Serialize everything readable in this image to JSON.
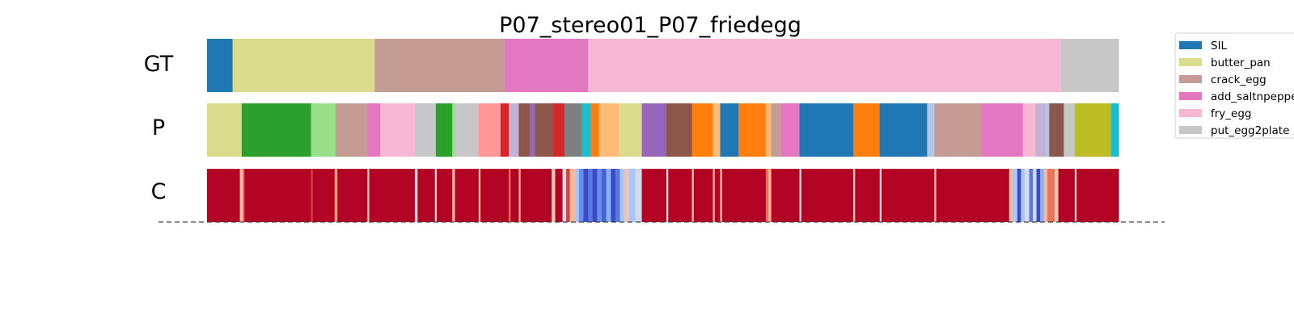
{
  "chart_data": {
    "type": "segmentation",
    "title": "P07_stereo01_P07_friedegg",
    "rows": [
      "GT",
      "P",
      "C"
    ],
    "legend": {
      "placement": "top-right",
      "entries": [
        {
          "label": "SIL",
          "color": "#1f77b4"
        },
        {
          "label": "butter_pan",
          "color": "#dbdb8d"
        },
        {
          "label": "crack_egg",
          "color": "#c49c94"
        },
        {
          "label": "add_saltnpepper",
          "color": "#e377c2"
        },
        {
          "label": "fry_egg",
          "color": "#f7b6d2"
        },
        {
          "label": "put_egg2plate",
          "color": "#c7c7c7"
        }
      ]
    },
    "gt_segments": [
      {
        "start": 0.0,
        "end": 0.028,
        "color": "#1f77b4"
      },
      {
        "start": 0.028,
        "end": 0.184,
        "color": "#dbdb8d"
      },
      {
        "start": 0.184,
        "end": 0.327,
        "color": "#c49c94"
      },
      {
        "start": 0.327,
        "end": 0.418,
        "color": "#e377c2"
      },
      {
        "start": 0.418,
        "end": 0.937,
        "color": "#f7b6d2"
      },
      {
        "start": 0.937,
        "end": 1.0,
        "color": "#c7c7c7"
      }
    ],
    "pred_segments": [
      {
        "start": 0.0,
        "end": 0.038,
        "color": "#dbdb8d"
      },
      {
        "start": 0.038,
        "end": 0.114,
        "color": "#2ca02c"
      },
      {
        "start": 0.114,
        "end": 0.141,
        "color": "#98df8a"
      },
      {
        "start": 0.141,
        "end": 0.176,
        "color": "#c49c94"
      },
      {
        "start": 0.176,
        "end": 0.19,
        "color": "#e377c2"
      },
      {
        "start": 0.19,
        "end": 0.228,
        "color": "#f7b6d2"
      },
      {
        "start": 0.228,
        "end": 0.251,
        "color": "#c7c7c7"
      },
      {
        "start": 0.251,
        "end": 0.269,
        "color": "#2ca02c"
      },
      {
        "start": 0.269,
        "end": 0.272,
        "color": "#98df8a"
      },
      {
        "start": 0.272,
        "end": 0.298,
        "color": "#c7c7c7"
      },
      {
        "start": 0.298,
        "end": 0.322,
        "color": "#ff9896"
      },
      {
        "start": 0.322,
        "end": 0.331,
        "color": "#d62728"
      },
      {
        "start": 0.331,
        "end": 0.342,
        "color": "#c5b0d5"
      },
      {
        "start": 0.342,
        "end": 0.354,
        "color": "#8c564b"
      },
      {
        "start": 0.354,
        "end": 0.36,
        "color": "#9467bd"
      },
      {
        "start": 0.36,
        "end": 0.38,
        "color": "#8c564b"
      },
      {
        "start": 0.38,
        "end": 0.392,
        "color": "#d62728"
      },
      {
        "start": 0.392,
        "end": 0.411,
        "color": "#7f7f7f"
      },
      {
        "start": 0.411,
        "end": 0.421,
        "color": "#17becf"
      },
      {
        "start": 0.421,
        "end": 0.43,
        "color": "#ff7f0e"
      },
      {
        "start": 0.43,
        "end": 0.434,
        "color": "#ffbb78"
      },
      {
        "start": 0.434,
        "end": 0.452,
        "color": "#ffbb78"
      },
      {
        "start": 0.452,
        "end": 0.477,
        "color": "#dbdb8d"
      },
      {
        "start": 0.477,
        "end": 0.504,
        "color": "#9467bd"
      },
      {
        "start": 0.504,
        "end": 0.532,
        "color": "#8c564b"
      },
      {
        "start": 0.532,
        "end": 0.555,
        "color": "#ff7f0e"
      },
      {
        "start": 0.555,
        "end": 0.563,
        "color": "#ffbb78"
      },
      {
        "start": 0.563,
        "end": 0.583,
        "color": "#1f77b4"
      },
      {
        "start": 0.583,
        "end": 0.613,
        "color": "#ff7f0e"
      },
      {
        "start": 0.613,
        "end": 0.619,
        "color": "#ffbb78"
      },
      {
        "start": 0.619,
        "end": 0.63,
        "color": "#c49c94"
      },
      {
        "start": 0.63,
        "end": 0.65,
        "color": "#e377c2"
      },
      {
        "start": 0.65,
        "end": 0.709,
        "color": "#1f77b4"
      },
      {
        "start": 0.709,
        "end": 0.738,
        "color": "#ff7f0e"
      },
      {
        "start": 0.738,
        "end": 0.79,
        "color": "#1f77b4"
      },
      {
        "start": 0.79,
        "end": 0.798,
        "color": "#aec7e8"
      },
      {
        "start": 0.798,
        "end": 0.85,
        "color": "#c49c94"
      },
      {
        "start": 0.85,
        "end": 0.895,
        "color": "#e377c2"
      },
      {
        "start": 0.895,
        "end": 0.909,
        "color": "#f7b6d2"
      },
      {
        "start": 0.909,
        "end": 0.92,
        "color": "#c5b0d5"
      },
      {
        "start": 0.92,
        "end": 0.924,
        "color": "#aec7e8"
      },
      {
        "start": 0.924,
        "end": 0.94,
        "color": "#8c564b"
      },
      {
        "start": 0.94,
        "end": 0.952,
        "color": "#c7c7c7"
      },
      {
        "start": 0.952,
        "end": 0.992,
        "color": "#bcbd22"
      },
      {
        "start": 0.992,
        "end": 1.0,
        "color": "#17becf"
      }
    ],
    "confidence_segments": [
      {
        "start": 0.0,
        "end": 0.036,
        "color": "#b40426"
      },
      {
        "start": 0.036,
        "end": 0.039,
        "color": "#f4c5ad"
      },
      {
        "start": 0.039,
        "end": 0.041,
        "color": "#e7745b"
      },
      {
        "start": 0.041,
        "end": 0.114,
        "color": "#b40426"
      },
      {
        "start": 0.114,
        "end": 0.116,
        "color": "#d0473d"
      },
      {
        "start": 0.116,
        "end": 0.14,
        "color": "#b40426"
      },
      {
        "start": 0.14,
        "end": 0.143,
        "color": "#f5a081"
      },
      {
        "start": 0.143,
        "end": 0.176,
        "color": "#b40426"
      },
      {
        "start": 0.176,
        "end": 0.178,
        "color": "#f2cbb7"
      },
      {
        "start": 0.178,
        "end": 0.228,
        "color": "#b40426"
      },
      {
        "start": 0.228,
        "end": 0.231,
        "color": "#dddcdc"
      },
      {
        "start": 0.231,
        "end": 0.25,
        "color": "#b40426"
      },
      {
        "start": 0.25,
        "end": 0.252,
        "color": "#dddcdc"
      },
      {
        "start": 0.252,
        "end": 0.269,
        "color": "#b40426"
      },
      {
        "start": 0.269,
        "end": 0.272,
        "color": "#f7b89c"
      },
      {
        "start": 0.272,
        "end": 0.298,
        "color": "#b40426"
      },
      {
        "start": 0.298,
        "end": 0.3,
        "color": "#f4c5ad"
      },
      {
        "start": 0.3,
        "end": 0.331,
        "color": "#b40426"
      },
      {
        "start": 0.331,
        "end": 0.333,
        "color": "#e7745b"
      },
      {
        "start": 0.333,
        "end": 0.342,
        "color": "#b40426"
      },
      {
        "start": 0.342,
        "end": 0.344,
        "color": "#f7b89c"
      },
      {
        "start": 0.344,
        "end": 0.378,
        "color": "#b40426"
      },
      {
        "start": 0.378,
        "end": 0.382,
        "color": "#f4c5ad"
      },
      {
        "start": 0.382,
        "end": 0.39,
        "color": "#b40426"
      },
      {
        "start": 0.39,
        "end": 0.394,
        "color": "#cfdaea"
      },
      {
        "start": 0.394,
        "end": 0.398,
        "color": "#d0473d"
      },
      {
        "start": 0.398,
        "end": 0.404,
        "color": "#f7b89c"
      },
      {
        "start": 0.404,
        "end": 0.408,
        "color": "#aac7fd"
      },
      {
        "start": 0.408,
        "end": 0.413,
        "color": "#6b8df0"
      },
      {
        "start": 0.413,
        "end": 0.418,
        "color": "#3b4cc0"
      },
      {
        "start": 0.418,
        "end": 0.423,
        "color": "#5977e3"
      },
      {
        "start": 0.423,
        "end": 0.428,
        "color": "#3b4cc0"
      },
      {
        "start": 0.428,
        "end": 0.433,
        "color": "#6b8df0"
      },
      {
        "start": 0.433,
        "end": 0.438,
        "color": "#4a63d3"
      },
      {
        "start": 0.438,
        "end": 0.443,
        "color": "#8caffe"
      },
      {
        "start": 0.443,
        "end": 0.448,
        "color": "#3b4cc0"
      },
      {
        "start": 0.448,
        "end": 0.453,
        "color": "#5977e3"
      },
      {
        "start": 0.453,
        "end": 0.458,
        "color": "#aac7fd"
      },
      {
        "start": 0.458,
        "end": 0.463,
        "color": "#f4c5ad"
      },
      {
        "start": 0.463,
        "end": 0.47,
        "color": "#aac7fd"
      },
      {
        "start": 0.47,
        "end": 0.477,
        "color": "#cfdaea"
      },
      {
        "start": 0.477,
        "end": 0.504,
        "color": "#b40426"
      },
      {
        "start": 0.504,
        "end": 0.506,
        "color": "#dddcdc"
      },
      {
        "start": 0.506,
        "end": 0.532,
        "color": "#b40426"
      },
      {
        "start": 0.532,
        "end": 0.534,
        "color": "#f2cbb7"
      },
      {
        "start": 0.534,
        "end": 0.555,
        "color": "#b40426"
      },
      {
        "start": 0.555,
        "end": 0.557,
        "color": "#f7b89c"
      },
      {
        "start": 0.557,
        "end": 0.563,
        "color": "#b40426"
      },
      {
        "start": 0.563,
        "end": 0.565,
        "color": "#f4c5ad"
      },
      {
        "start": 0.565,
        "end": 0.613,
        "color": "#b40426"
      },
      {
        "start": 0.613,
        "end": 0.616,
        "color": "#e7745b"
      },
      {
        "start": 0.616,
        "end": 0.619,
        "color": "#f7b89c"
      },
      {
        "start": 0.619,
        "end": 0.65,
        "color": "#b40426"
      },
      {
        "start": 0.65,
        "end": 0.652,
        "color": "#dddcdc"
      },
      {
        "start": 0.652,
        "end": 0.709,
        "color": "#b40426"
      },
      {
        "start": 0.709,
        "end": 0.711,
        "color": "#f2cbb7"
      },
      {
        "start": 0.711,
        "end": 0.738,
        "color": "#b40426"
      },
      {
        "start": 0.738,
        "end": 0.74,
        "color": "#dddcdc"
      },
      {
        "start": 0.74,
        "end": 0.798,
        "color": "#b40426"
      },
      {
        "start": 0.798,
        "end": 0.8,
        "color": "#f2cbb7"
      },
      {
        "start": 0.8,
        "end": 0.88,
        "color": "#b40426"
      },
      {
        "start": 0.88,
        "end": 0.884,
        "color": "#f7b89c"
      },
      {
        "start": 0.884,
        "end": 0.889,
        "color": "#aac7fd"
      },
      {
        "start": 0.889,
        "end": 0.893,
        "color": "#3b4cc0"
      },
      {
        "start": 0.893,
        "end": 0.897,
        "color": "#aac7fd"
      },
      {
        "start": 0.897,
        "end": 0.902,
        "color": "#dddcdc"
      },
      {
        "start": 0.902,
        "end": 0.906,
        "color": "#5977e3"
      },
      {
        "start": 0.906,
        "end": 0.91,
        "color": "#cfdaea"
      },
      {
        "start": 0.91,
        "end": 0.914,
        "color": "#3b4cc0"
      },
      {
        "start": 0.914,
        "end": 0.918,
        "color": "#8caffe"
      },
      {
        "start": 0.918,
        "end": 0.922,
        "color": "#f7b89c"
      },
      {
        "start": 0.922,
        "end": 0.93,
        "color": "#e7745b"
      },
      {
        "start": 0.93,
        "end": 0.934,
        "color": "#f4c5ad"
      },
      {
        "start": 0.934,
        "end": 0.952,
        "color": "#b40426"
      },
      {
        "start": 0.952,
        "end": 0.954,
        "color": "#dddcdc"
      },
      {
        "start": 0.954,
        "end": 1.0,
        "color": "#b40426"
      }
    ],
    "baseline": {
      "style": "dashed",
      "color": "#444444"
    }
  }
}
